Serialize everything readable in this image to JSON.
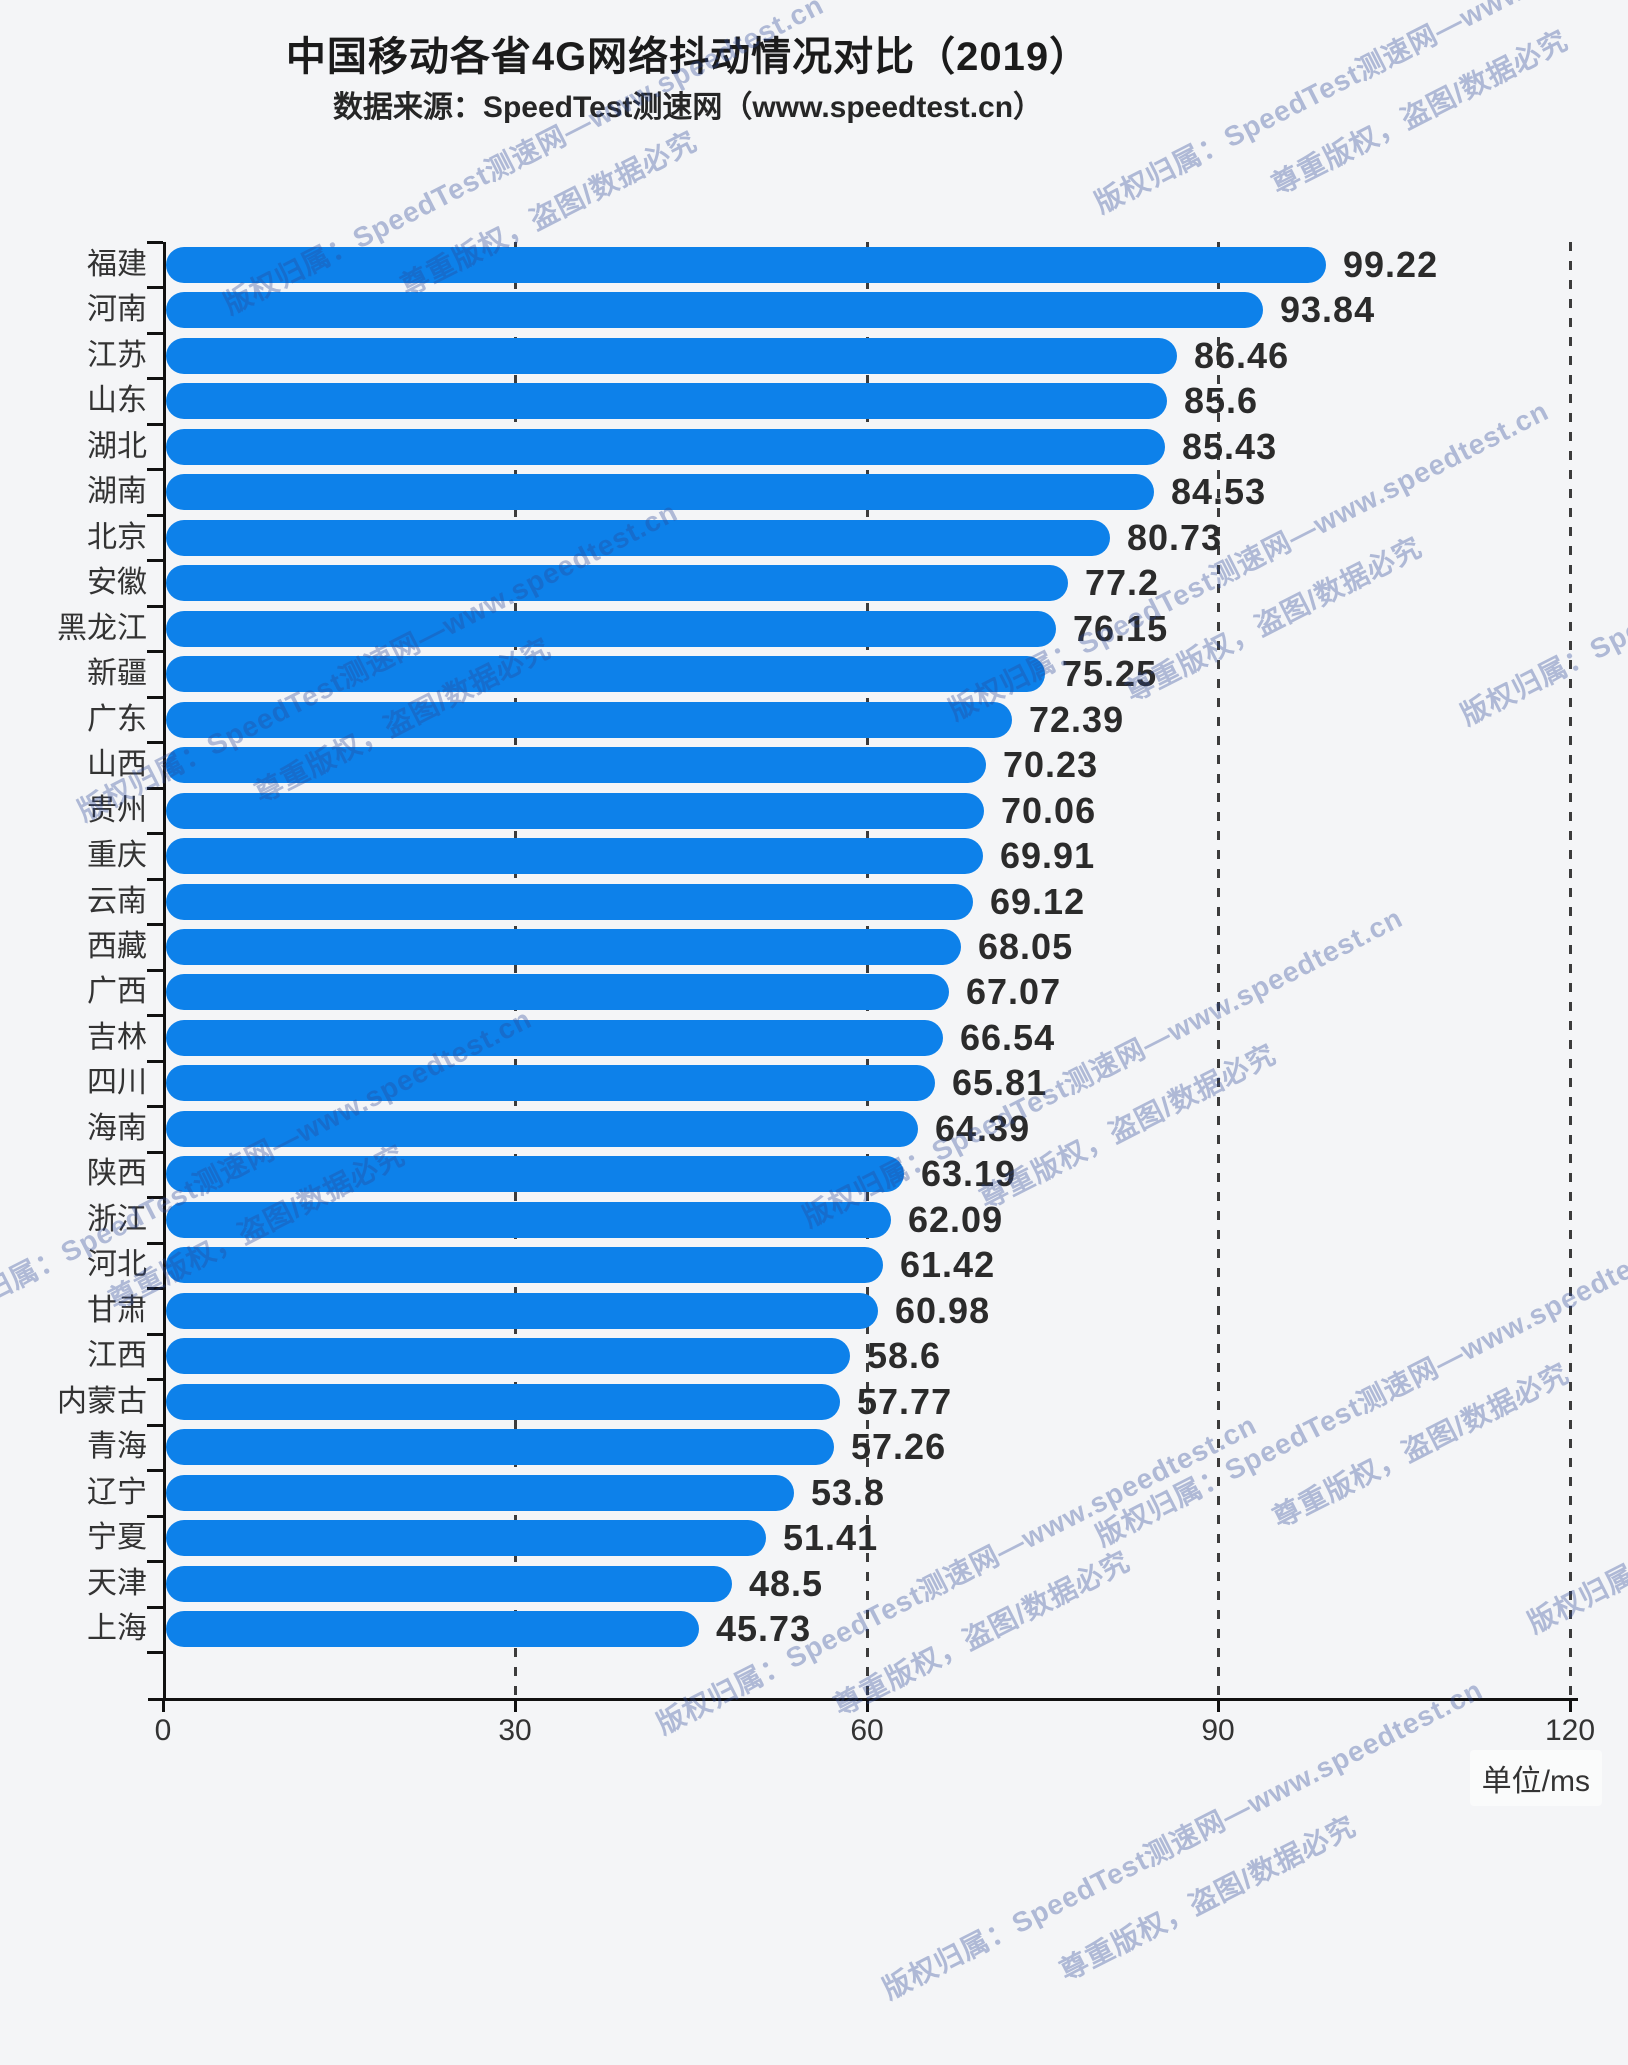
{
  "header": {
    "title": "中国移动各省4G网络抖动情况对比（2019）",
    "subtitle": "数据来源：SpeedTest测速网（www.speedtest.cn）"
  },
  "unit_label": "单位/ms",
  "watermark": {
    "line1": "版权归属：SpeedTest测速网—www.speedtest.cn",
    "line2": "尊重版权，盗图/数据必究",
    "color": "rgba(40,70,150,0.34)",
    "angle_deg": -27,
    "tiles": [
      [
        371,
        -202
      ],
      [
        1242,
        -303
      ],
      [
        225,
        305
      ],
      [
        1096,
        204
      ],
      [
        79,
        812
      ],
      [
        950,
        711
      ],
      [
        1462,
        716
      ],
      [
        -67,
        1319
      ],
      [
        804,
        1218
      ],
      [
        1097,
        1537
      ],
      [
        658,
        1725
      ],
      [
        1529,
        1624
      ],
      [
        884,
        1990
      ]
    ]
  },
  "chart_data": {
    "type": "bar",
    "orientation": "horizontal",
    "title": "中国移动各省4G网络抖动情况对比（2019）",
    "subtitle": "数据来源：SpeedTest测速网（www.speedtest.cn）",
    "xlabel": "单位/ms",
    "ylabel": "",
    "xlim": [
      0,
      120
    ],
    "xticks": [
      0,
      30,
      60,
      90,
      120
    ],
    "grid": "dashed vertical gridlines at 30/60/90/120",
    "legend": "none",
    "bar_color": "#0d81ea",
    "categories": [
      "福建",
      "河南",
      "江苏",
      "山东",
      "湖北",
      "湖南",
      "北京",
      "安徽",
      "黑龙江",
      "新疆",
      "广东",
      "山西",
      "贵州",
      "重庆",
      "云南",
      "西藏",
      "广西",
      "吉林",
      "四川",
      "海南",
      "陕西",
      "浙江",
      "河北",
      "甘肃",
      "江西",
      "内蒙古",
      "青海",
      "辽宁",
      "宁夏",
      "天津",
      "上海"
    ],
    "values": [
      99.22,
      93.84,
      86.46,
      85.6,
      85.43,
      84.53,
      80.73,
      77.2,
      76.15,
      75.25,
      72.39,
      70.23,
      70.06,
      69.91,
      69.12,
      68.05,
      67.07,
      66.54,
      65.81,
      64.39,
      63.19,
      62.09,
      61.42,
      60.98,
      58.6,
      57.77,
      57.26,
      53.8,
      51.41,
      48.5,
      45.73
    ]
  }
}
